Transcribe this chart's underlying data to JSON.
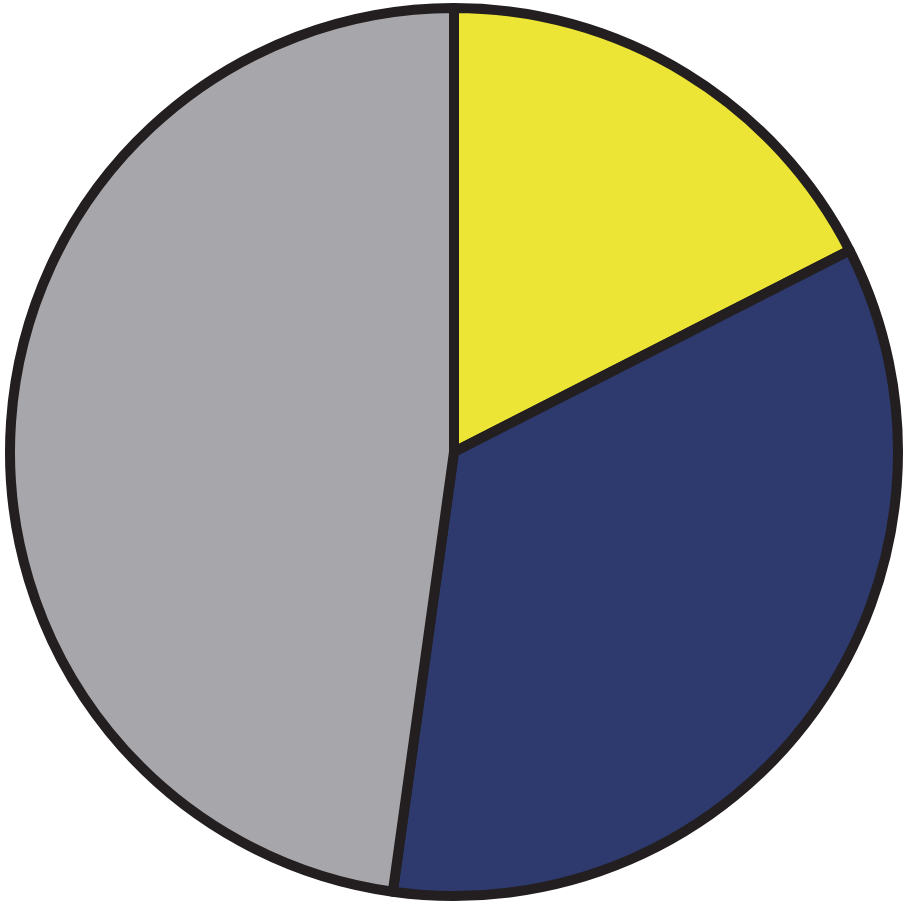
{
  "chart_data": {
    "type": "pie",
    "categories": [
      null,
      null,
      null
    ],
    "values": [
      17.5,
      34.7,
      47.8
    ],
    "colors": [
      "#ece536",
      "#2e3a6e",
      "#a7a6aa"
    ]
  }
}
